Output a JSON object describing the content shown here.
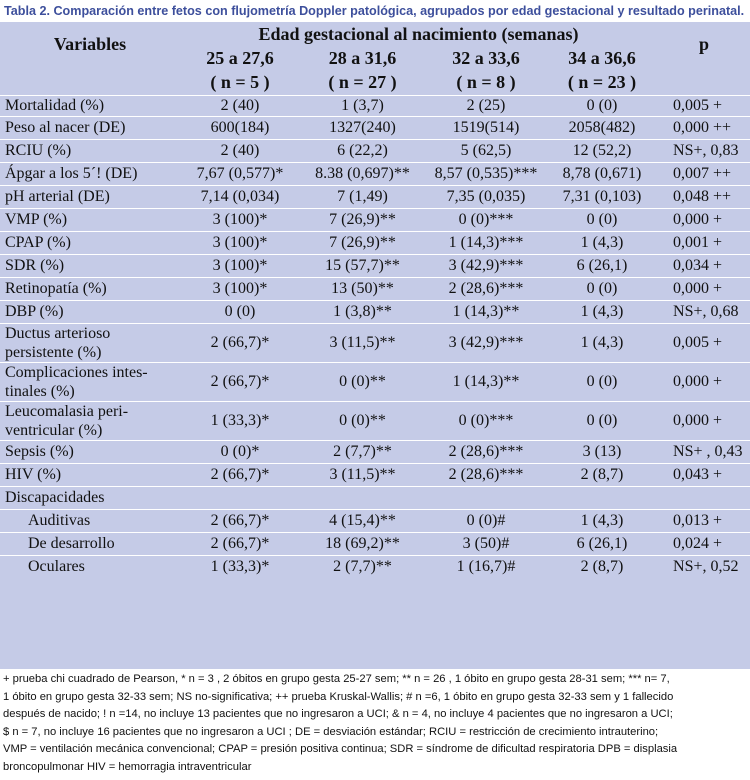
{
  "caption": "Tabla 2. Comparación entre fetos con flujometría Doppler patológica, agrupados por edad gestacional y resultado perinatal.",
  "header": {
    "variables": "Variables",
    "group_title": "Edad gestacional al nacimiento (semanas)",
    "p": "p",
    "groups": [
      {
        "range": "25 a 27,6",
        "n": "( n = 5 )"
      },
      {
        "range": "28 a 31,6",
        "n": "( n = 27 )"
      },
      {
        "range": "32 a 33,6",
        "n": "( n = 8 )"
      },
      {
        "range": "34 a 36,6",
        "n": "( n = 23 )"
      }
    ]
  },
  "rows": [
    {
      "label": [
        "Mortalidad (%)"
      ],
      "values": [
        "2 (40)",
        "1 (3,7)",
        "2 (25)",
        "0 (0)"
      ],
      "p": "0,005 +"
    },
    {
      "label": [
        "Peso al nacer (DE)"
      ],
      "values": [
        "600(184)",
        "1327(240)",
        "1519(514)",
        "2058(482)"
      ],
      "p": "0,000 ++"
    },
    {
      "label": [
        "RCIU (%)"
      ],
      "values": [
        "2 (40)",
        "6 (22,2)",
        "5 (62,5)",
        "12 (52,2)"
      ],
      "p": "NS+, 0,83"
    },
    {
      "label": [
        "Ápgar a los 5´! (DE)"
      ],
      "values": [
        "7,67 (0,577)*",
        "8.38 (0,697)**",
        "8,57 (0,535)***",
        "8,78 (0,671)"
      ],
      "p": "0,007 ++"
    },
    {
      "label": [
        "pH arterial (DE)"
      ],
      "values": [
        "7,14 (0,034)",
        "7 (1,49)",
        "7,35 (0,035)",
        "7,31 (0,103)"
      ],
      "p": "0,048 ++"
    },
    {
      "label": [
        "VMP (%)"
      ],
      "values": [
        "3 (100)*",
        "7 (26,9)**",
        "0 (0)***",
        "0 (0)"
      ],
      "p": "0,000 +"
    },
    {
      "label": [
        "CPAP (%)"
      ],
      "values": [
        "3 (100)*",
        "7 (26,9)**",
        "1 (14,3)***",
        "1 (4,3)"
      ],
      "p": "0,001 +"
    },
    {
      "label": [
        "SDR (%)"
      ],
      "values": [
        "3 (100)*",
        "15 (57,7)**",
        "3 (42,9)***",
        "6 (26,1)"
      ],
      "p": "0,034 +"
    },
    {
      "label": [
        "Retinopatía (%)"
      ],
      "values": [
        "3 (100)*",
        "13 (50)**",
        "2 (28,6)***",
        "0 (0)"
      ],
      "p": "0,000 +"
    },
    {
      "label": [
        "DBP (%)"
      ],
      "values": [
        "0 (0)",
        "1 (3,8)**",
        "1 (14,3)**",
        "1 (4,3)"
      ],
      "p": "NS+, 0,68"
    },
    {
      "label": [
        "Ductus arterioso",
        "persistente (%)"
      ],
      "values": [
        "2 (66,7)*",
        "3 (11,5)**",
        "3 (42,9)***",
        "1 (4,3)"
      ],
      "p": "0,005 +"
    },
    {
      "label": [
        "Complicaciones intes-",
        "tinales (%)"
      ],
      "values": [
        "2 (66,7)*",
        "0 (0)**",
        "1 (14,3)**",
        "0 (0)"
      ],
      "p": "0,000 +"
    },
    {
      "label": [
        "Leucomalasia peri-",
        "ventricular (%)"
      ],
      "values": [
        "1 (33,3)*",
        "0 (0)**",
        "0 (0)***",
        "0 (0)"
      ],
      "p": "0,000 +"
    },
    {
      "label": [
        "Sepsis (%)"
      ],
      "values": [
        "0 (0)*",
        "2 (7,7)**",
        "2 (28,6)***",
        "3 (13)"
      ],
      "p": "NS+ , 0,43"
    },
    {
      "label": [
        "HIV (%)"
      ],
      "values": [
        "2 (66,7)*",
        "3 (11,5)**",
        "2 (28,6)***",
        "2 (8,7)"
      ],
      "p": "0,043 +"
    },
    {
      "label": [
        "Discapacidades"
      ],
      "values": [
        "",
        "",
        "",
        ""
      ],
      "p": ""
    },
    {
      "label": [
        "Auditivas"
      ],
      "indent": true,
      "values": [
        "2 (66,7)*",
        "4 (15,4)**",
        "0 (0)#",
        "1 (4,3)"
      ],
      "p": "0,013 +"
    },
    {
      "label": [
        "De desarrollo"
      ],
      "indent": true,
      "values": [
        "2 (66,7)*",
        "18 (69,2)**",
        "3 (50)#",
        "6 (26,1)"
      ],
      "p": "0,024 +"
    },
    {
      "label": [
        "Oculares"
      ],
      "indent": true,
      "values": [
        "1 (33,3)*",
        "2 (7,7)**",
        "1 (16,7)#",
        "2 (8,7)"
      ],
      "p": "NS+, 0,52"
    }
  ],
  "footnotes": [
    "+ prueba chi cuadrado de Pearson, * n = 3 , 2 óbitos en grupo gesta 25-27 sem; ** n = 26 , 1 óbito en grupo gesta 28-31 sem; *** n= 7,",
    "1 óbito en grupo gesta 32-33 sem; NS no-significativa; ++ prueba Kruskal-Wallis; # n =6, 1 óbito en grupo gesta 32-33 sem y 1 fallecido",
    "después de nacido; ! n =14, no incluye 13 pacientes que no ingresaron a UCI; & n = 4, no incluye 4 pacientes que no ingresaron a UCI;",
    "$ n = 7, no incluye 16 pacientes que no ingresaron a UCI ; DE = desviación estándar; RCIU = restricción de crecimiento intrauterino;",
    "VMP = ventilación mecánica convencional; CPAP = presión positiva continua; SDR = síndrome de dificultad respiratoria DPB = displasia",
    "broncopulmonar HIV = hemorragia intraventricular"
  ]
}
